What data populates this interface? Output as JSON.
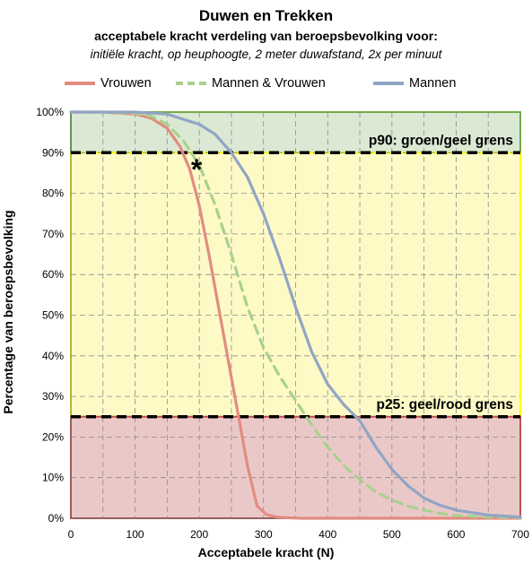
{
  "header": {
    "title": "Duwen en Trekken",
    "subtitle": "acceptabele kracht verdeling van beroepsbevolking voor:",
    "conditions": "initiële kracht, op heuphoogte, 2 meter duwafstand, 2x per minuut"
  },
  "colors": {
    "vrouwen": "#e28c80",
    "mannen_vrouwen": "#a9d18e",
    "mannen": "#91a5c4",
    "green_zone": "#dbe9d4",
    "yellow_zone": "#fdfac6",
    "red_zone": "#ebc8c8",
    "green_border": "#70ad47",
    "yellow_border": "#ffff00",
    "red_border": "#c0504d"
  },
  "chart_data": {
    "type": "line",
    "title": "Duwen en Trekken",
    "xlabel": "Acceptabele kracht (N)",
    "ylabel": "Percentage van beroepsbevolking",
    "xlim": [
      0,
      700
    ],
    "ylim": [
      0,
      100
    ],
    "x_ticks": [
      "0",
      "100",
      "200",
      "300",
      "400",
      "500",
      "600",
      "700"
    ],
    "y_ticks": [
      "0%",
      "10%",
      "20%",
      "30%",
      "40%",
      "50%",
      "60%",
      "70%",
      "80%",
      "90%",
      "100%"
    ],
    "grid": true,
    "legend_position": "top",
    "series": [
      {
        "name": "Vrouwen",
        "style": "solid",
        "x": [
          0,
          50,
          100,
          125,
          150,
          170,
          185,
          200,
          215,
          230,
          245,
          260,
          275,
          290,
          305,
          320,
          340,
          360,
          400,
          500,
          700
        ],
        "y": [
          100,
          100,
          99.5,
          98.5,
          96,
          91.5,
          86,
          77,
          65,
          52,
          39,
          26,
          13,
          3,
          0.9,
          0.3,
          0.1,
          0,
          0,
          0,
          0
        ]
      },
      {
        "name": "Mannen & Vrouwen",
        "style": "dashed",
        "x": [
          0,
          50,
          100,
          125,
          150,
          175,
          200,
          225,
          250,
          275,
          300,
          325,
          350,
          375,
          400,
          425,
          450,
          475,
          500,
          525,
          550,
          575,
          600,
          650,
          700
        ],
        "y": [
          100,
          100,
          99.7,
          99,
          97,
          93,
          87,
          77,
          65,
          52,
          42,
          35,
          29,
          23,
          17.5,
          13,
          9.5,
          6.5,
          4.5,
          3,
          2,
          1.2,
          0.7,
          0.3,
          0.2
        ]
      },
      {
        "name": "Mannen",
        "style": "solid",
        "x": [
          0,
          50,
          100,
          150,
          200,
          225,
          250,
          275,
          300,
          325,
          350,
          375,
          400,
          425,
          450,
          475,
          500,
          525,
          550,
          575,
          600,
          650,
          700
        ],
        "y": [
          100,
          100,
          100,
          99.5,
          97,
          94.5,
          90,
          84,
          75,
          64,
          52,
          41,
          33,
          28,
          24,
          17.5,
          12,
          8,
          5,
          3.2,
          2,
          0.8,
          0.3
        ]
      }
    ],
    "zones": [
      {
        "name": "green",
        "from": 90,
        "to": 100,
        "label": "p90: groen/geel grens"
      },
      {
        "name": "yellow",
        "from": 25,
        "to": 90
      },
      {
        "name": "red",
        "from": 0,
        "to": 25,
        "label": "p25: geel/rood grens"
      }
    ],
    "annotation": {
      "text": "*",
      "x": 200,
      "y": 87
    }
  }
}
